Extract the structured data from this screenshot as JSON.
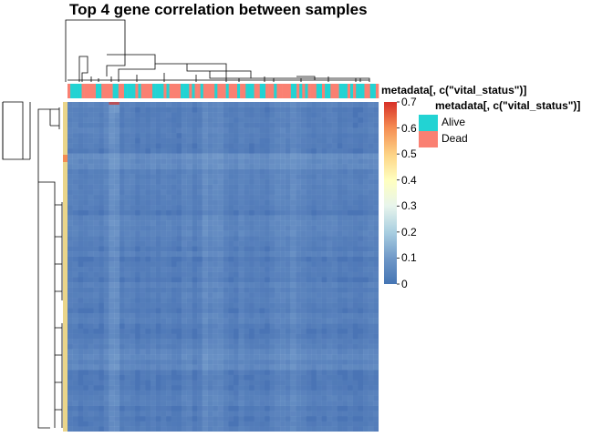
{
  "title": "Top 4 gene correlation between samples",
  "annotation": {
    "title": "metadata[, c(\"vital_status\")]",
    "legend_title": "metadata[, c(\"vital_status\")]",
    "levels": [
      {
        "label": "Alive",
        "color": "#22D3D3"
      },
      {
        "label": "Dead",
        "color": "#FA8072"
      }
    ]
  },
  "colors": {
    "low": "#4575B4",
    "mid": "#FFFFBF",
    "high": "#D73027"
  },
  "chart_data": {
    "type": "heatmap",
    "title": "Top 4 gene correlation between samples",
    "color_scale": {
      "min": 0,
      "max": 0.7,
      "ticks": [
        0,
        0.1,
        0.2,
        0.3,
        0.4,
        0.5,
        0.6,
        0.7
      ],
      "tick_labels": [
        "0",
        "0.1",
        "0.2",
        "0.3",
        "0.4",
        "0.5",
        "0.6",
        "0.7"
      ]
    },
    "row_dendrogram": true,
    "column_dendrogram": true,
    "column_annotation": "vital_status"
  }
}
